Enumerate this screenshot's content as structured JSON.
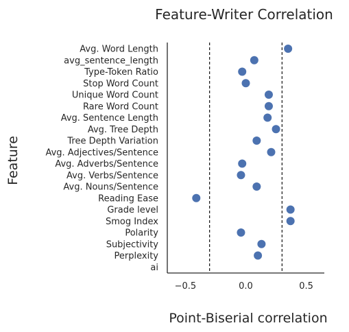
{
  "chart_data": {
    "type": "scatter",
    "title": "Feature-Writer Correlation",
    "xlabel": "Point-Biserial correlation",
    "ylabel": "Feature",
    "xlim": [
      -0.65,
      0.65
    ],
    "xticks": [
      -0.5,
      0.0,
      0.5
    ],
    "xtick_labels": [
      "−0.5",
      "0.0",
      "0.5"
    ],
    "reference_lines": [
      -0.3,
      0.3
    ],
    "point_color": "#4c72b0",
    "grid": false,
    "categories": [
      "Avg. Word Length",
      "avg_sentence_length",
      "Type-Token Ratio",
      "Stop Word Count",
      "Unique Word Count",
      "Rare Word Count",
      "Avg. Sentence Length",
      "Avg. Tree Depth",
      "Tree Depth Variation",
      "Avg. Adjectives/Sentence",
      "Avg. Adverbs/Sentence",
      "Avg. Verbs/Sentence",
      "Avg. Nouns/Sentence",
      "Reading Ease",
      "Grade level",
      "Smog Index",
      "Polarity",
      "Subjectivity",
      "Perplexity",
      "ai"
    ],
    "values": [
      0.35,
      0.07,
      -0.03,
      0.0,
      0.19,
      0.19,
      0.18,
      0.25,
      0.09,
      0.21,
      -0.03,
      -0.04,
      0.09,
      -0.41,
      0.37,
      0.37,
      -0.04,
      0.13,
      0.1,
      null
    ]
  }
}
